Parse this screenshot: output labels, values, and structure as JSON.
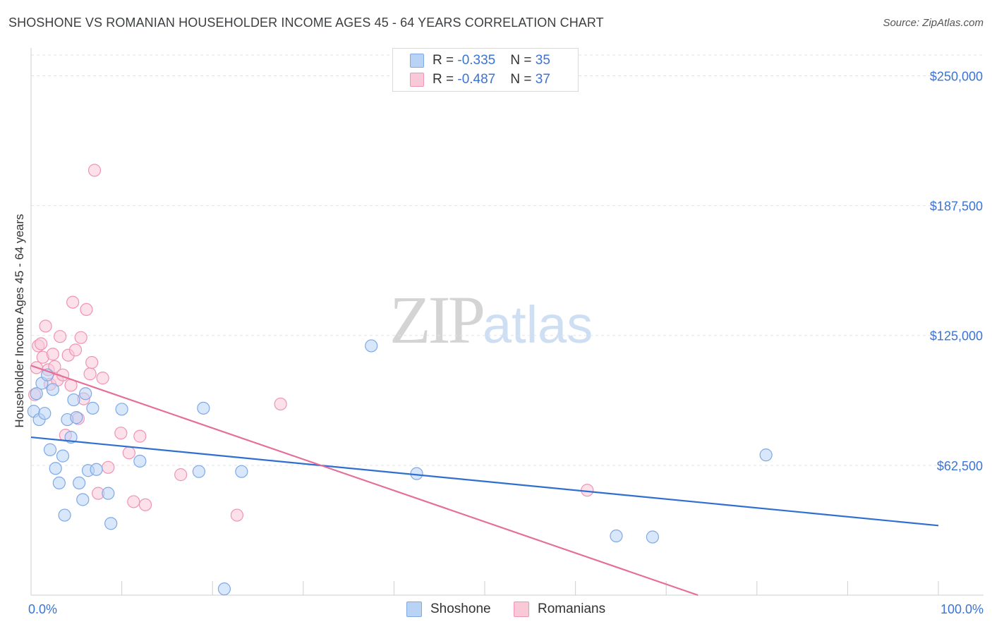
{
  "title": "SHOSHONE VS ROMANIAN HOUSEHOLDER INCOME AGES 45 - 64 YEARS CORRELATION CHART",
  "source": "Source: ZipAtlas.com",
  "watermark": {
    "zip": "ZIP",
    "atlas": "atlas"
  },
  "legend_top": [
    {
      "r_label": "R = ",
      "r_value": "-0.335",
      "n_label": "N = ",
      "n_value": "35"
    },
    {
      "r_label": "R = ",
      "r_value": "-0.487",
      "n_label": "N = ",
      "n_value": "37"
    }
  ],
  "colors": {
    "shoshone_fill": "#b9d3f5",
    "shoshone_stroke": "#7ea9e6",
    "shoshone_line": "#2f6fcf",
    "romanian_fill": "#f9c9d8",
    "romanian_stroke": "#ef94b3",
    "romanian_line": "#e56e9a",
    "axis_label": "#3b74d3",
    "grid": "#e3e3e3"
  },
  "chart_data": {
    "type": "scatter",
    "title": "SHOSHONE VS ROMANIAN HOUSEHOLDER INCOME AGES 45 - 64 YEARS CORRELATION CHART",
    "xlabel": "",
    "ylabel": "Householder Income Ages 45 - 64 years",
    "xlim": [
      0,
      100
    ],
    "ylim": [
      0,
      260000
    ],
    "x_tick_labels": [
      "0.0%",
      "100.0%"
    ],
    "y_ticks": [
      62500,
      125000,
      187500,
      250000
    ],
    "y_tick_labels": [
      "$62,500",
      "$125,000",
      "$187,500",
      "$250,000"
    ],
    "series": [
      {
        "name": "Shoshone",
        "r": -0.335,
        "n": 35,
        "trend": {
          "x0": 0,
          "y0": 76000,
          "x1": 100,
          "y1": 33500
        },
        "points": [
          [
            0.3,
            88500
          ],
          [
            0.6,
            97000
          ],
          [
            0.9,
            84500
          ],
          [
            1.2,
            102000
          ],
          [
            1.5,
            87500
          ],
          [
            1.8,
            106000
          ],
          [
            2.1,
            70000
          ],
          [
            2.4,
            99000
          ],
          [
            2.7,
            61000
          ],
          [
            3.1,
            54000
          ],
          [
            3.5,
            67000
          ],
          [
            3.7,
            38500
          ],
          [
            4.0,
            84500
          ],
          [
            4.4,
            76000
          ],
          [
            4.7,
            94000
          ],
          [
            5.0,
            85500
          ],
          [
            5.3,
            54000
          ],
          [
            5.7,
            46000
          ],
          [
            6.0,
            97000
          ],
          [
            6.3,
            60000
          ],
          [
            6.8,
            90000
          ],
          [
            7.2,
            60500
          ],
          [
            8.5,
            49000
          ],
          [
            8.8,
            34500
          ],
          [
            10.0,
            89500
          ],
          [
            12.0,
            64500
          ],
          [
            18.5,
            59500
          ],
          [
            19.0,
            90000
          ],
          [
            21.3,
            3000
          ],
          [
            23.2,
            59500
          ],
          [
            37.5,
            120000
          ],
          [
            42.5,
            58500
          ],
          [
            81.0,
            67500
          ],
          [
            64.5,
            28500
          ],
          [
            68.5,
            28000
          ]
        ]
      },
      {
        "name": "Romanians",
        "r": -0.487,
        "n": 37,
        "trend": {
          "x0": 0,
          "y0": 110500,
          "x1": 73.5,
          "y1": 0
        },
        "points": [
          [
            0.4,
            96500
          ],
          [
            0.6,
            109500
          ],
          [
            0.8,
            120000
          ],
          [
            1.1,
            121000
          ],
          [
            1.3,
            114500
          ],
          [
            1.6,
            129500
          ],
          [
            1.9,
            108500
          ],
          [
            2.1,
            101500
          ],
          [
            2.4,
            116000
          ],
          [
            2.6,
            110000
          ],
          [
            2.9,
            103500
          ],
          [
            3.2,
            124500
          ],
          [
            3.5,
            106000
          ],
          [
            3.8,
            77000
          ],
          [
            4.1,
            115500
          ],
          [
            4.4,
            101000
          ],
          [
            4.6,
            141000
          ],
          [
            4.9,
            118000
          ],
          [
            5.2,
            85000
          ],
          [
            5.5,
            124000
          ],
          [
            5.8,
            94500
          ],
          [
            6.1,
            137500
          ],
          [
            6.5,
            106500
          ],
          [
            6.7,
            112000
          ],
          [
            7.0,
            204500
          ],
          [
            7.4,
            49000
          ],
          [
            7.9,
            104500
          ],
          [
            8.5,
            61500
          ],
          [
            9.9,
            78000
          ],
          [
            10.8,
            68500
          ],
          [
            11.3,
            45000
          ],
          [
            12.0,
            76500
          ],
          [
            12.6,
            43500
          ],
          [
            16.5,
            58000
          ],
          [
            22.7,
            38500
          ],
          [
            27.5,
            92000
          ],
          [
            61.3,
            50500
          ]
        ]
      }
    ]
  }
}
